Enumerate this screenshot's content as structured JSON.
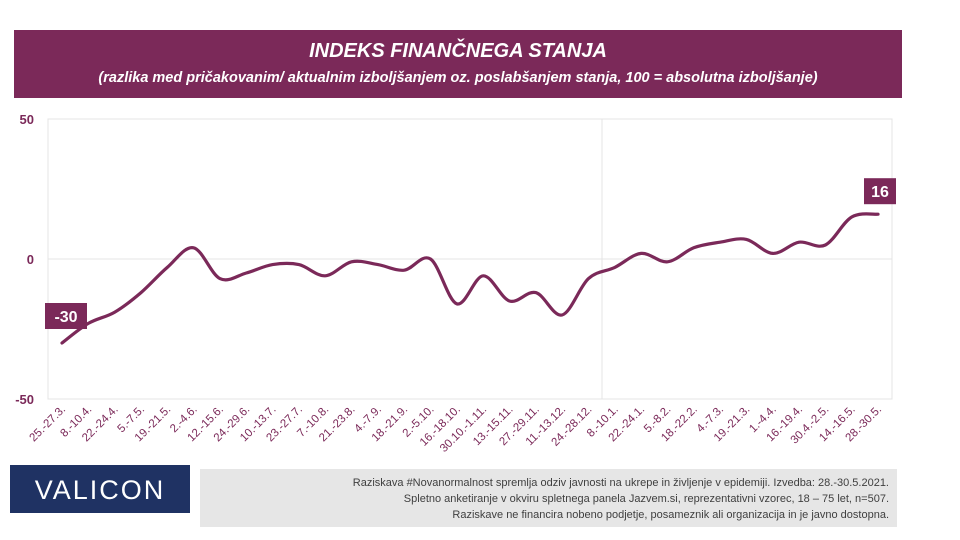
{
  "header": {
    "title": "INDEKS FINANČNEGA STANJA",
    "subtitle": "(razlika med pričakovanim/ aktualnim izboljšanjem oz. poslabšanjem stanja, 100 = absolutna izboljšanje)"
  },
  "colors": {
    "brand": "#7b2959",
    "logo_bg": "#1f3263",
    "footnote_bg": "#e6e6e6"
  },
  "logo": {
    "text": "VALICON"
  },
  "footnote": {
    "lines": [
      "Raziskava #Novanormalnost spremlja odziv javnosti na ukrepe in življenje v epidemiji. Izvedba: 28.-30.5.2021.",
      "Spletno anketiranje v okviru spletnega panela Jazvem.si, reprezentativni vzorec, 18 – 75 let, n=507.",
      "Raziskave ne financira nobeno podjetje, posameznik ali organizacija in je javno dostopna."
    ]
  },
  "chart_data": {
    "type": "line",
    "title": "INDEKS FINANČNEGA STANJA",
    "subtitle": "(razlika med pričakovanim/ aktualnim izboljšanjem oz. poslabšanjem stanja, 100 = absolutna izboljšanje)",
    "ylim": [
      -50,
      50
    ],
    "yticks": [
      50,
      0,
      -50
    ],
    "grid": true,
    "legend": "none",
    "categories": [
      "25.-27.3.",
      "8.-10.4.",
      "22.-24.4.",
      "5.-7.5.",
      "19.-21.5.",
      "2.-4.6.",
      "12.-15.6.",
      "24.-29.6.",
      "10.-13.7.",
      "23.-27.7.",
      "7.-10.8.",
      "21.-23.8.",
      "4.-7.9.",
      "18.-21.9.",
      "2.-5.10.",
      "16.-18.10.",
      "30.10.-1.11.",
      "13.-15.11.",
      "27.-29.11.",
      "11.-13.12.",
      "24.-28.12.",
      "8.-10.1.",
      "22.-24.1.",
      "5.-8.2.",
      "18.-22.2.",
      "4.-7.3.",
      "19.-21.3.",
      "1.-4.4.",
      "16.-19.4.",
      "30.4.-2.5.",
      "14.-16.5.",
      "28.-30.5."
    ],
    "values": [
      -30,
      -23,
      -19,
      -12,
      -3,
      4,
      -7,
      -5,
      -2,
      -2,
      -6,
      -1,
      -2,
      -4,
      0,
      -16,
      -6,
      -15,
      -12,
      -20,
      -7,
      -3,
      2,
      -1,
      4,
      6,
      7,
      2,
      6,
      5,
      15,
      16
    ],
    "data_labels": [
      {
        "index": 0,
        "text": "-30"
      },
      {
        "index": 31,
        "text": "16"
      }
    ]
  }
}
